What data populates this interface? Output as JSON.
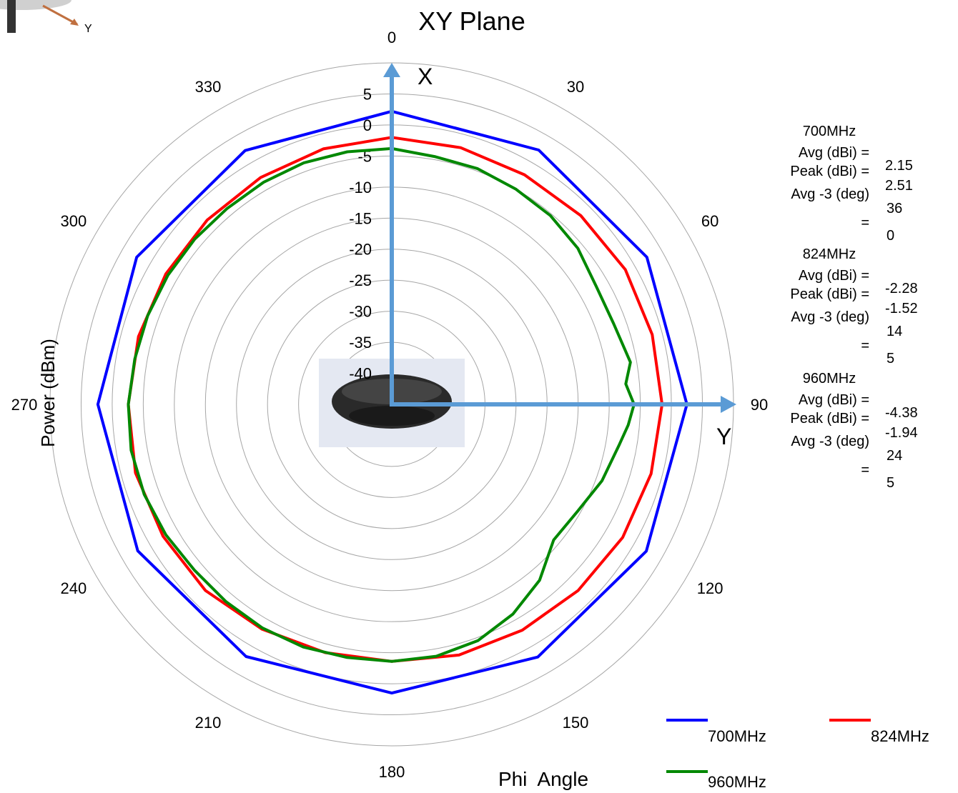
{
  "chart_data": {
    "type": "polar-line",
    "title": "XY Plane",
    "xlabel": "Phi  Angle",
    "ylabel": "Power (dBm)",
    "angle_ticks": [
      0,
      30,
      60,
      90,
      120,
      150,
      180,
      210,
      240,
      270,
      300,
      330
    ],
    "radial_ticks": [
      5,
      0,
      -5,
      -10,
      -15,
      -20,
      -25,
      -30,
      -35,
      -40
    ],
    "r_range": [
      -45,
      10
    ],
    "axis_arrows": {
      "x_label": "X",
      "y_label": "Y"
    },
    "series": [
      {
        "name": "700MHz",
        "color": "#0000ff",
        "angles": [
          0,
          30,
          60,
          90,
          120,
          150,
          180,
          210,
          240,
          270,
          300,
          330
        ],
        "values": [
          2.2,
          2.3,
          2.4,
          2.5,
          2.3,
          2.0,
          1.5,
          1.9,
          2.2,
          2.3,
          2.4,
          2.2
        ]
      },
      {
        "name": "824MHz",
        "color": "#ff0000",
        "angles": [
          0,
          15,
          30,
          45,
          60,
          75,
          90,
          105,
          120,
          135,
          150,
          165,
          180,
          195,
          210,
          225,
          240,
          255,
          270,
          285,
          300,
          315,
          330,
          345
        ],
        "values": [
          -2.0,
          -2.2,
          -2.3,
          -2.0,
          -1.6,
          -1.6,
          -1.5,
          -1.8,
          -2.1,
          -2.6,
          -3.0,
          -3.2,
          -3.6,
          -3.6,
          -3.2,
          -2.6,
          -2.5,
          -2.3,
          -2.6,
          -2.8,
          -3.0,
          -3.0,
          -2.8,
          -2.4
        ]
      },
      {
        "name": "960MHz",
        "color": "#008800",
        "angles": [
          0,
          10,
          20,
          30,
          40,
          50,
          60,
          70,
          80,
          85,
          90,
          95,
          100,
          110,
          120,
          130,
          140,
          150,
          160,
          170,
          180,
          190,
          200,
          210,
          220,
          230,
          240,
          250,
          260,
          270,
          280,
          290,
          300,
          310,
          320,
          330,
          340,
          350
        ],
        "values": [
          -3.8,
          -4.5,
          -4.6,
          -5.0,
          -5.3,
          -5.9,
          -7.0,
          -7.0,
          -6.0,
          -7.2,
          -6.0,
          -6.8,
          -7.8,
          -9.0,
          -10.5,
          -11.0,
          -8.0,
          -6.0,
          -4.5,
          -3.8,
          -3.6,
          -3.6,
          -3.4,
          -3.4,
          -3.5,
          -3.5,
          -3.0,
          -2.6,
          -2.4,
          -2.6,
          -3.0,
          -3.2,
          -3.4,
          -3.6,
          -3.8,
          -3.7,
          -3.6,
          -3.7
        ]
      }
    ],
    "legend_position": "bottom-right",
    "grid": true
  },
  "stats": [
    {
      "band": "700MHz",
      "avg_label": "Avg (dBi) =",
      "peak_label": "Peak (dBi) =",
      "avg3_label": "Avg -3 (deg)",
      "eq": "=",
      "avg": "2.15",
      "peak": "2.51",
      "deg_a": "36",
      "deg_b": "0"
    },
    {
      "band": "824MHz",
      "avg_label": "Avg (dBi) =",
      "peak_label": "Peak (dBi) =",
      "avg3_label": "Avg -3 (deg)",
      "eq": "=",
      "avg": "-2.28",
      "peak": "-1.52",
      "deg_a": "14",
      "deg_b": "5"
    },
    {
      "band": "960MHz",
      "avg_label": "Avg (dBi) =",
      "peak_label": "Peak (dBi) =",
      "avg3_label": "Avg -3 (deg)",
      "eq": "=",
      "avg": "-4.38",
      "peak": "-1.94",
      "deg_a": "24",
      "deg_b": "5"
    }
  ],
  "corner_axis_label": "Y",
  "colors": {
    "arrow": "#5b9bd5",
    "grid": "#a6a6a6"
  }
}
